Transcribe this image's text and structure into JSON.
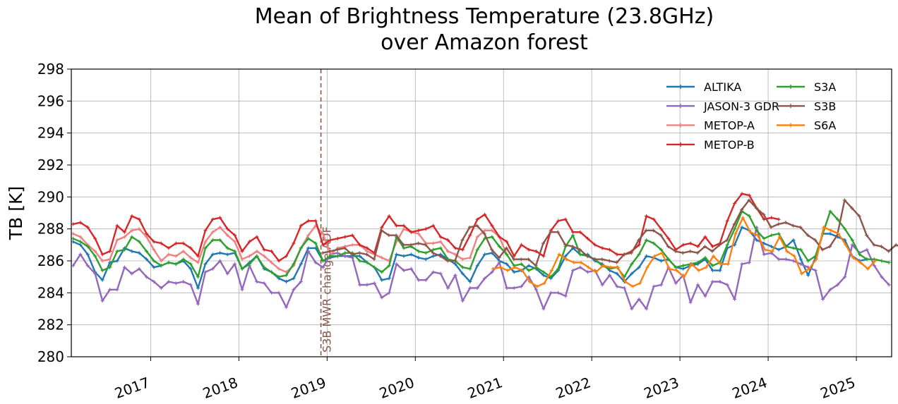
{
  "chart_data": {
    "type": "line",
    "title": [
      "Mean of Brightness Temperature (23.8GHz)",
      "over Amazon forest"
    ],
    "ylabel": "TB [K]",
    "xlabel": "",
    "ylim": [
      280,
      298
    ],
    "xlim": [
      2016.1,
      2025.4
    ],
    "grid": true,
    "legend_position": "top-right",
    "x_ticks": [
      {
        "value": 2017,
        "label": "2017"
      },
      {
        "value": 2018,
        "label": "2018"
      },
      {
        "value": 2019,
        "label": "2019"
      },
      {
        "value": 2020,
        "label": "2020"
      },
      {
        "value": 2021,
        "label": "2021"
      },
      {
        "value": 2022,
        "label": "2022"
      },
      {
        "value": 2023,
        "label": "2023"
      },
      {
        "value": 2024,
        "label": "2024"
      },
      {
        "value": 2025,
        "label": "2025"
      }
    ],
    "y_ticks": [
      280,
      282,
      284,
      286,
      288,
      290,
      292,
      294,
      296,
      298
    ],
    "annotations": [
      {
        "type": "vline",
        "x": 2018.93,
        "text": "S3B MWR change ADF",
        "color": "#8c564b",
        "style": "dashed"
      }
    ],
    "series": [
      {
        "name": "ALTIKA",
        "color": "#1f77b4",
        "start": 2016.12,
        "values": [
          287.2,
          287.0,
          286.4,
          285.3,
          284.8,
          285.9,
          286.0,
          286.8,
          286.6,
          286.5,
          286.1,
          285.6,
          285.7,
          285.9,
          285.8,
          286.0,
          285.5,
          284.3,
          285.8,
          286.4,
          286.5,
          286.4,
          286.5,
          285.5,
          285.9,
          286.3,
          285.5,
          285.3,
          284.9,
          284.7,
          284.9,
          285.8,
          286.8,
          286.8,
          286.0,
          286.2,
          286.3,
          286.3,
          286.3,
          286.3,
          285.9,
          285.6,
          284.8,
          284.9,
          286.4,
          286.3,
          286.4,
          286.2,
          286.1,
          286.3,
          286.4,
          286.1,
          285.8,
          285.2,
          284.7,
          285.7,
          286.4,
          286.5,
          286.0,
          285.8,
          285.3,
          285.4,
          285.7,
          285.5,
          285.1,
          284.9,
          285.4,
          286.3,
          286.8,
          286.4,
          286.4,
          286.0,
          285.8,
          285.4,
          285.2,
          284.7,
          285.2,
          285.6,
          286.3,
          286.2,
          286.0,
          286.1,
          285.6,
          285.5,
          285.7,
          285.8,
          286.1,
          285.4,
          285.4,
          286.8,
          287.0,
          288.1,
          287.9,
          287.3,
          287.1,
          286.9,
          286.7,
          286.9,
          287.3,
          286.1,
          285.1,
          286.2,
          287.7,
          287.7,
          287.5,
          287.3,
          286.3,
          286.0,
          286.1
        ]
      },
      {
        "name": "JASON-3 GDR",
        "color": "#9467bd",
        "start": 2016.12,
        "values": [
          285.7,
          286.4,
          285.7,
          285.2,
          283.5,
          284.2,
          284.2,
          285.6,
          285.2,
          285.5,
          285.0,
          284.7,
          284.3,
          284.7,
          284.6,
          284.7,
          284.5,
          283.3,
          285.3,
          285.5,
          286.0,
          285.2,
          285.8,
          284.2,
          285.7,
          284.7,
          284.6,
          284.0,
          284.0,
          283.1,
          284.2,
          284.7,
          286.6,
          285.9,
          285.6,
          286.4,
          286.5,
          286.3,
          286.2,
          284.5,
          284.5,
          284.6,
          283.7,
          284.0,
          285.8,
          285.4,
          285.5,
          284.8,
          284.8,
          285.3,
          285.2,
          284.3,
          285.1,
          283.5,
          284.3,
          284.3,
          284.9,
          285.3,
          285.9,
          284.3,
          284.3,
          284.4,
          285.0,
          284.2,
          283.0,
          284.0,
          284.0,
          283.8,
          285.4,
          285.6,
          285.3,
          285.4,
          284.5,
          285.1,
          284.4,
          284.3,
          283.0,
          283.6,
          283.0,
          284.4,
          284.5,
          285.6,
          284.6,
          285.1,
          283.4,
          284.5,
          283.8,
          284.7,
          284.7,
          284.5,
          283.6,
          285.8,
          285.9,
          288.1,
          286.4,
          286.5,
          286.1,
          286.1,
          286.0,
          285.8,
          285.6,
          285.4,
          283.6,
          284.2,
          284.5,
          285.0,
          287.0,
          286.5,
          286.7,
          285.7,
          285.0,
          284.5
        ]
      },
      {
        "name": "METOP-A",
        "color": "#f08080",
        "start": 2016.12,
        "values": [
          287.7,
          287.5,
          287.0,
          286.6,
          286.0,
          286.1,
          287.3,
          287.5,
          287.9,
          288.0,
          287.5,
          286.7,
          286.0,
          286.4,
          286.3,
          286.6,
          286.2,
          285.9,
          287.2,
          287.8,
          288.1,
          287.6,
          287.2,
          286.1,
          286.3,
          286.6,
          286.3,
          285.9,
          285.5,
          285.3,
          285.7,
          286.8,
          287.6,
          288.2,
          287.7,
          286.4,
          286.8,
          286.9,
          287.0,
          287.0,
          286.6,
          286.4,
          286.2,
          286.0,
          287.2,
          288.0,
          287.8,
          287.7,
          287.1,
          287.1,
          287.2,
          286.6,
          286.4,
          286.1,
          286.2,
          287.5,
          287.9,
          287.9,
          287.5,
          286.4
        ]
      },
      {
        "name": "METOP-B",
        "color": "#d62728",
        "start": 2016.12,
        "values": [
          288.3,
          288.4,
          288.1,
          287.4,
          286.4,
          286.6,
          288.2,
          287.8,
          288.8,
          288.6,
          287.7,
          287.2,
          287.1,
          286.8,
          287.1,
          287.1,
          286.8,
          286.3,
          287.9,
          288.6,
          288.7,
          288.0,
          287.6,
          286.6,
          287.2,
          287.5,
          286.7,
          286.6,
          286.0,
          286.3,
          287.1,
          288.2,
          288.5,
          288.5,
          287.0,
          287.3,
          287.4,
          287.5,
          287.6,
          287.0,
          286.8,
          286.5,
          288.1,
          288.8,
          288.2,
          288.2,
          287.8,
          287.9,
          288.0,
          288.2,
          287.5,
          287.3,
          286.8,
          286.7,
          287.6,
          288.6,
          288.9,
          288.2,
          287.5,
          287.2,
          286.3,
          287.0,
          286.7,
          286.6,
          286.3,
          287.9,
          288.5,
          288.6,
          287.8,
          287.8,
          287.4,
          287.0,
          286.8,
          286.7,
          286.4,
          286.4,
          286.6,
          287.0,
          288.8,
          288.6,
          288.0,
          287.4,
          286.7,
          287.0,
          287.1,
          286.9,
          287.5,
          286.9,
          287.1,
          288.5,
          289.6,
          290.2,
          290.1,
          289.3,
          288.6,
          288.7,
          288.6
        ]
      },
      {
        "name": "S3A",
        "color": "#2ca02c",
        "start": 2016.12,
        "values": [
          287.4,
          287.2,
          286.9,
          286.3,
          285.4,
          285.6,
          286.6,
          286.7,
          287.5,
          287.2,
          286.6,
          286.0,
          285.7,
          285.9,
          285.8,
          286.1,
          285.8,
          285.0,
          286.8,
          287.3,
          287.3,
          286.8,
          286.6,
          285.5,
          285.8,
          286.3,
          285.6,
          285.3,
          285.0,
          285.1,
          285.8,
          286.8,
          287.4,
          287.1,
          286.0,
          286.3,
          286.3,
          286.5,
          286.5,
          286.0,
          285.9,
          285.6,
          285.3,
          285.7,
          287.5,
          286.8,
          286.9,
          286.6,
          286.5,
          286.7,
          286.8,
          286.1,
          286.0,
          285.6,
          285.5,
          286.7,
          287.4,
          287.5,
          286.9,
          286.4,
          285.7,
          285.8,
          285.4,
          285.6,
          285.3,
          285.0,
          285.5,
          286.9,
          287.6,
          286.4,
          286.3,
          286.1,
          285.7,
          285.5,
          285.6,
          285.0,
          285.8,
          286.4,
          287.3,
          287.1,
          286.7,
          286.1,
          285.6,
          285.7,
          285.8,
          285.9,
          286.2,
          285.7,
          285.9,
          287.0,
          288.0,
          289.1,
          288.8,
          287.9,
          287.4,
          287.6,
          287.7,
          286.9,
          286.8,
          286.7,
          286.0,
          286.3,
          287.7,
          289.1,
          288.6,
          288.0,
          287.3,
          286.4,
          286.1,
          286.1,
          286.0,
          285.9
        ]
      },
      {
        "name": "S3B",
        "color": "#8c564b",
        "start": 2018.95,
        "values": [
          286.5,
          286.6,
          286.7,
          286.8,
          286.4,
          286.5,
          286.4,
          286.1,
          287.9,
          287.6,
          287.6,
          287.0,
          287.0,
          287.1,
          287.0,
          286.5,
          286.3,
          286.0,
          286.0,
          287.3,
          288.1,
          288.2,
          287.7,
          286.7,
          286.2,
          286.8,
          286.1,
          286.1,
          286.1,
          285.7,
          287.1,
          287.8,
          287.8,
          287.0,
          286.9,
          286.7,
          286.3,
          286.1,
          286.1,
          286.0,
          285.9,
          286.4,
          286.5,
          287.3,
          287.9,
          287.9,
          287.6,
          286.9,
          286.6,
          286.5,
          286.6,
          286.5,
          286.9,
          286.6,
          287.0,
          287.3,
          288.3,
          289.2,
          289.8,
          289.3,
          288.9,
          288.1,
          288.3,
          288.4,
          288.2,
          288.1,
          287.6,
          287.3,
          286.7,
          286.9,
          287.6,
          289.8,
          289.3,
          288.8,
          287.6,
          287.0,
          286.9,
          286.6,
          287.0,
          286.8
        ]
      },
      {
        "name": "S6A",
        "color": "#ff7f0e",
        "start": 2020.88,
        "values": [
          285.5,
          285.6,
          285.4,
          285.6,
          285.4,
          284.7,
          284.4,
          284.6,
          285.4,
          286.4,
          286.1,
          285.9,
          285.9,
          285.6,
          285.3,
          285.7,
          285.6,
          285.6,
          284.7,
          284.4,
          284.6,
          285.6,
          286.3,
          286.5,
          285.5,
          285.4,
          285.0,
          285.8,
          285.4,
          285.6,
          286.3,
          285.8,
          285.8,
          287.7,
          288.7,
          287.8,
          287.6,
          286.7,
          286.6,
          287.5,
          286.6,
          286.3,
          285.2,
          285.5,
          286.1,
          288.1,
          287.9,
          287.7,
          287.0,
          286.2,
          285.9,
          285.5,
          286.0
        ]
      }
    ]
  }
}
